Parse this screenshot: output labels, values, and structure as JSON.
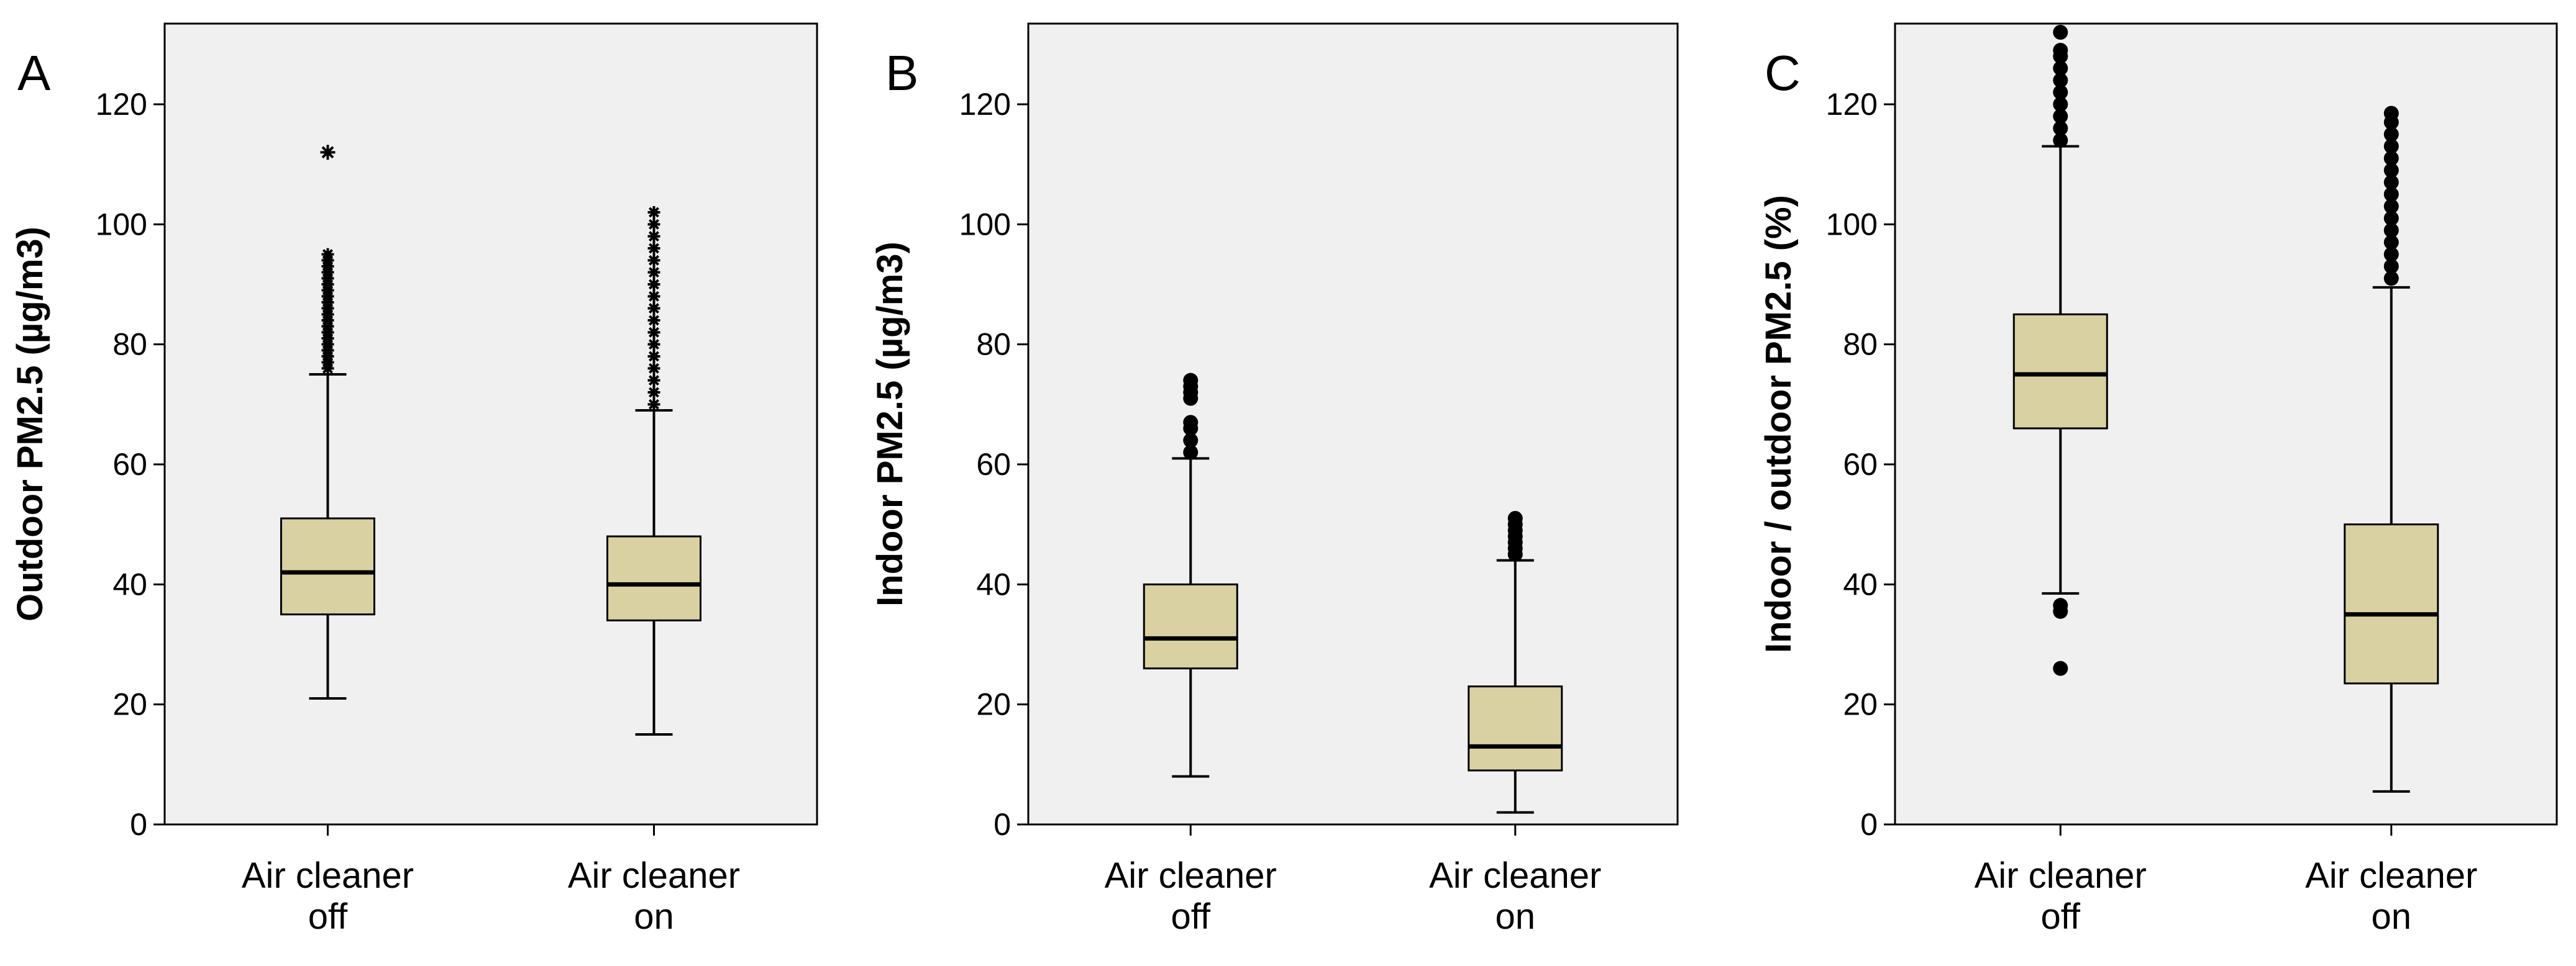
{
  "colors": {
    "plot_background": "#f0f0f0",
    "box_fill": "#d9d1a1",
    "box_stroke": "#000000",
    "outlier": "#000000"
  },
  "chart_data": [
    {
      "type": "boxplot",
      "panel_label": "A",
      "ylabel": "Outdoor PM2.5 (µg/m3)",
      "ylim": [
        0,
        133
      ],
      "yticks": [
        0,
        20,
        40,
        60,
        80,
        100,
        120
      ],
      "categories": [
        [
          "Air cleaner",
          "off"
        ],
        [
          "Air cleaner",
          "on"
        ]
      ],
      "boxes": [
        {
          "whisker_low": 21,
          "q1": 35,
          "median": 42,
          "q3": 51,
          "whisker_high": 75,
          "outliers": [
            76,
            77,
            78,
            79,
            80,
            81,
            82,
            83,
            84,
            85,
            86,
            87,
            88,
            89,
            90,
            91,
            92,
            93,
            94,
            95
          ],
          "extremes": [
            112
          ],
          "outlier_marker": "star"
        },
        {
          "whisker_low": 15,
          "q1": 34,
          "median": 40,
          "q3": 48,
          "whisker_high": 69,
          "outliers": [
            70,
            72,
            74,
            76,
            78,
            80,
            82,
            84,
            86,
            88,
            90,
            92,
            94,
            96,
            98,
            100,
            102
          ],
          "extremes": [],
          "outlier_marker": "star"
        }
      ]
    },
    {
      "type": "boxplot",
      "panel_label": "B",
      "ylabel": "Indoor PM2.5 (µg/m3)",
      "ylim": [
        0,
        133
      ],
      "yticks": [
        0,
        20,
        40,
        60,
        80,
        100,
        120
      ],
      "categories": [
        [
          "Air cleaner",
          "off"
        ],
        [
          "Air cleaner",
          "on"
        ]
      ],
      "boxes": [
        {
          "whisker_low": 8,
          "q1": 26,
          "median": 31,
          "q3": 40,
          "whisker_high": 61,
          "outliers": [
            62,
            64,
            66,
            67,
            71,
            72,
            73,
            74
          ],
          "extremes": [],
          "outlier_marker": "circle"
        },
        {
          "whisker_low": 2,
          "q1": 9,
          "median": 13,
          "q3": 23,
          "whisker_high": 44,
          "outliers": [
            45,
            46,
            47,
            48,
            49,
            50,
            51
          ],
          "extremes": [],
          "outlier_marker": "circle"
        }
      ]
    },
    {
      "type": "boxplot",
      "panel_label": "C",
      "ylabel": "Indoor / outdoor PM2.5 (%)",
      "ylim": [
        0,
        133
      ],
      "yticks": [
        0,
        20,
        40,
        60,
        80,
        100,
        120
      ],
      "categories": [
        [
          "Air cleaner",
          "off"
        ],
        [
          "Air cleaner",
          "on"
        ]
      ],
      "boxes": [
        {
          "whisker_low": 38.5,
          "q1": 66,
          "median": 75,
          "q3": 85,
          "whisker_high": 113,
          "outliers": [
            26,
            35.5,
            36.5,
            114,
            116,
            118,
            120,
            122,
            124,
            126,
            128,
            129,
            132
          ],
          "extremes": [],
          "outlier_marker": "circle"
        },
        {
          "whisker_low": 5.5,
          "q1": 23.5,
          "median": 35,
          "q3": 50,
          "whisker_high": 89.5,
          "outliers": [
            91,
            93,
            95,
            97,
            99,
            101,
            103,
            105,
            107,
            109,
            111,
            113,
            115,
            117,
            118.5
          ],
          "extremes": [],
          "outlier_marker": "circle"
        }
      ]
    }
  ]
}
